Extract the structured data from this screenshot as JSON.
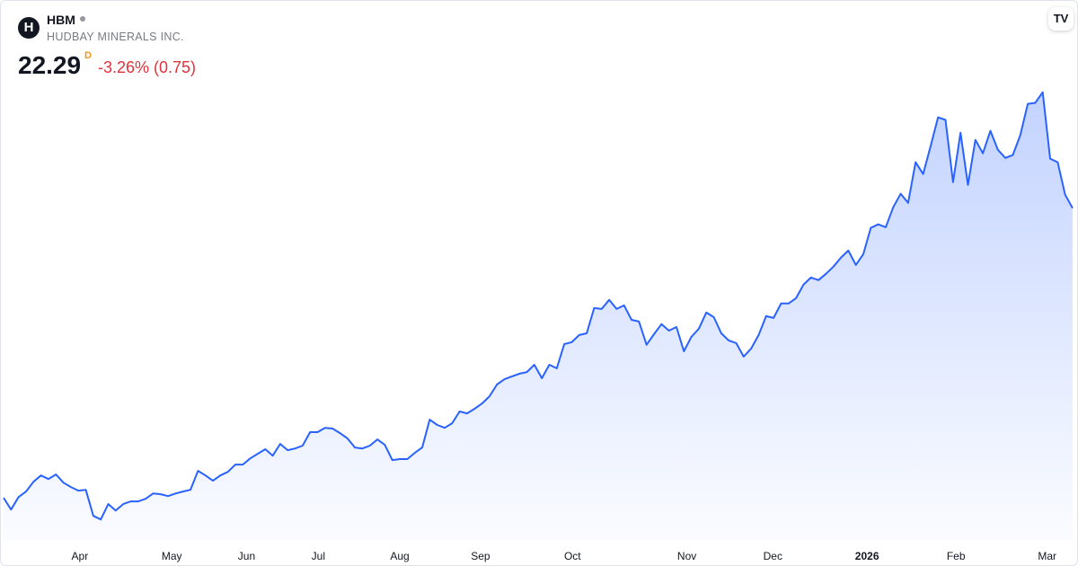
{
  "header": {
    "ticker": "HBM",
    "company": "HUDBAY MINERALS INC.",
    "price": 22.29,
    "interval": "D",
    "change": "-3.26% (0.75)"
  },
  "chart_data": {
    "type": "area",
    "color": "#2962ff",
    "values": [
      7.03,
      6.41,
      7.07,
      7.36,
      7.88,
      8.21,
      8.02,
      8.26,
      7.83,
      7.6,
      7.41,
      7.45,
      6.08,
      5.89,
      6.7,
      6.36,
      6.7,
      6.84,
      6.84,
      6.98,
      7.26,
      7.22,
      7.12,
      7.26,
      7.36,
      7.45,
      8.45,
      8.21,
      7.93,
      8.21,
      8.4,
      8.78,
      8.78,
      9.11,
      9.35,
      9.59,
      9.25,
      9.87,
      9.54,
      9.63,
      9.78,
      10.49,
      10.49,
      10.72,
      10.68,
      10.44,
      10.16,
      9.68,
      9.63,
      9.78,
      10.11,
      9.82,
      9.02,
      9.07,
      9.07,
      9.4,
      9.68,
      11.15,
      10.87,
      10.72,
      10.96,
      11.58,
      11.48,
      11.72,
      12.0,
      12.38,
      13.0,
      13.28,
      13.43,
      13.57,
      13.66,
      14.04,
      13.33,
      14.04,
      13.85,
      15.13,
      15.23,
      15.61,
      15.7,
      17.03,
      16.98,
      17.46,
      16.98,
      17.17,
      16.41,
      16.32,
      15.09,
      15.65,
      16.18,
      15.84,
      16.03,
      14.75,
      15.51,
      15.94,
      16.79,
      16.55,
      15.7,
      15.32,
      15.18,
      14.47,
      14.9,
      15.61,
      16.6,
      16.51,
      17.27,
      17.27,
      17.55,
      18.26,
      18.64,
      18.5,
      18.83,
      19.21,
      19.68,
      20.06,
      19.3,
      19.87,
      21.25,
      21.44,
      21.29,
      22.34,
      23.05,
      22.57,
      24.71,
      24.09,
      25.56,
      27.08,
      26.94,
      23.66,
      26.27,
      23.52,
      25.89,
      25.18,
      26.37,
      25.37,
      24.94,
      25.09,
      26.13,
      27.79,
      27.84,
      28.4,
      24.9,
      24.71,
      23.0,
      22.29
    ],
    "xlim": [
      0,
      143
    ],
    "xticks": [
      {
        "value": 10.2,
        "label": "Apr"
      },
      {
        "value": 22.5,
        "label": "May"
      },
      {
        "value": 32.5,
        "label": "Jun"
      },
      {
        "value": 42.1,
        "label": "Jul"
      },
      {
        "value": 53,
        "label": "Aug"
      },
      {
        "value": 63.8,
        "label": "Sep"
      },
      {
        "value": 76.1,
        "label": "Oct"
      },
      {
        "value": 91.4,
        "label": "Nov"
      },
      {
        "value": 102.9,
        "label": "Dec"
      },
      {
        "value": 115.5,
        "label": "2026"
      },
      {
        "value": 127.4,
        "label": "Feb"
      },
      {
        "value": 139.6,
        "label": "Mar"
      }
    ],
    "ylim": [
      5,
      29
    ]
  }
}
